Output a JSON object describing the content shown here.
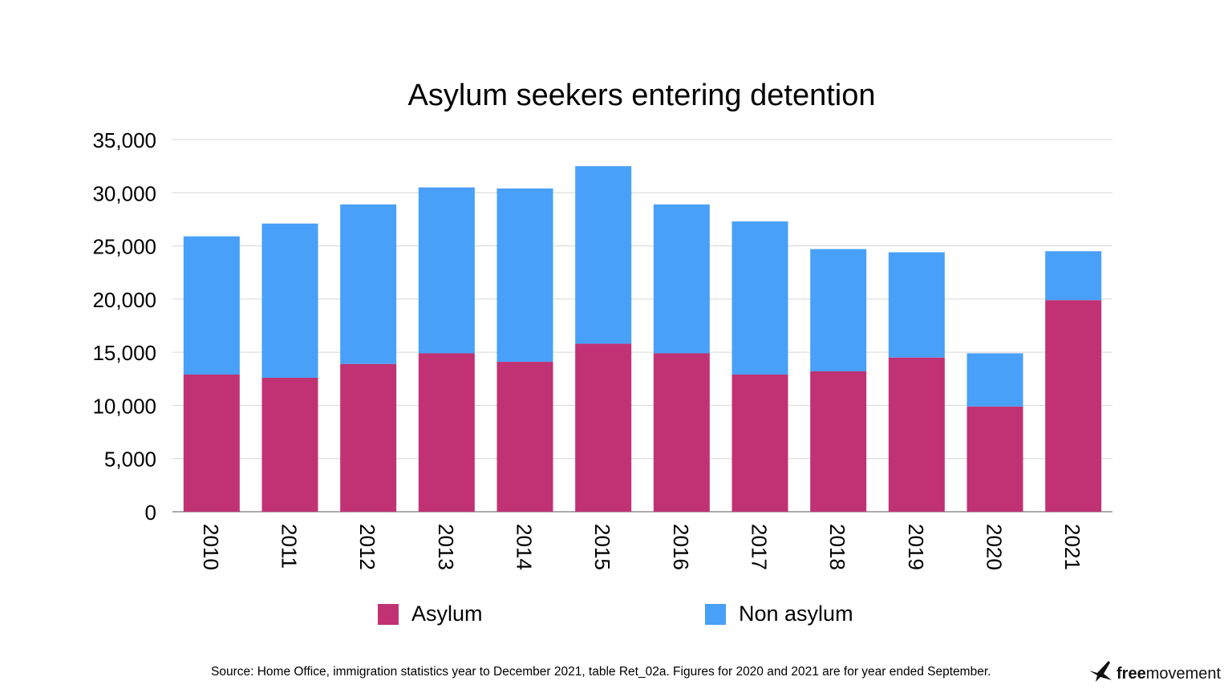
{
  "chart_data": {
    "type": "bar",
    "stacked": true,
    "title": "Asylum seekers entering detention",
    "xlabel": "",
    "ylabel": "",
    "ylim": [
      0,
      35000
    ],
    "yticks": [
      0,
      5000,
      10000,
      15000,
      20000,
      25000,
      30000,
      35000
    ],
    "ytick_labels": [
      "0",
      "5,000",
      "10,000",
      "15,000",
      "20,000",
      "25,000",
      "30,000",
      "35,000"
    ],
    "grid": true,
    "legend_position": "bottom",
    "categories": [
      "2010",
      "2011",
      "2012",
      "2013",
      "2014",
      "2015",
      "2016",
      "2017",
      "2018",
      "2019",
      "2020",
      "2021"
    ],
    "series": [
      {
        "name": "Asylum",
        "color": "#c13274",
        "values": [
          12900,
          12600,
          13900,
          14900,
          14100,
          15800,
          14900,
          12900,
          13200,
          14500,
          9900,
          19900
        ]
      },
      {
        "name": "Non asylum",
        "color": "#48a0f8",
        "values": [
          13000,
          14500,
          15000,
          15600,
          16300,
          16700,
          14000,
          14400,
          11500,
          9900,
          5000,
          4600
        ]
      }
    ]
  },
  "footer": {
    "source": "Source: Home Office, immigration statistics year to December 2021, table Ret_02a. Figures for 2020 and 2021 are for year ended September.",
    "logo_bold": "free",
    "logo_rest": "movement"
  }
}
